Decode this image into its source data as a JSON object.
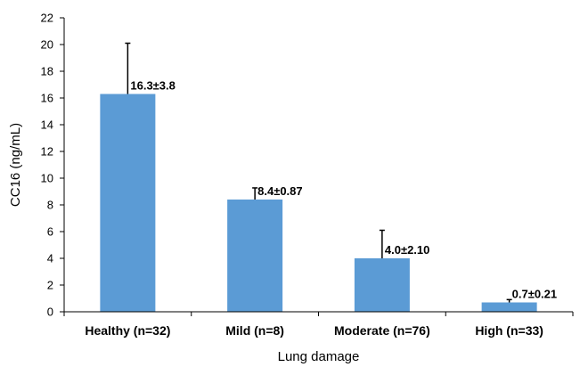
{
  "chart_data": {
    "type": "bar",
    "categories": [
      "Healthy (n=32)",
      "Mild (n=8)",
      "Moderate (n=76)",
      "High (n=33)"
    ],
    "values": [
      16.3,
      8.4,
      4.0,
      0.7
    ],
    "errors": [
      3.8,
      0.87,
      2.1,
      0.21
    ],
    "data_labels": [
      "16.3±3.8",
      "8.4±0.87",
      "4.0±2.10",
      "0.7±0.21"
    ],
    "xlabel": "Lung damage",
    "ylabel": "CC16 (ng/mL)",
    "ylim": [
      0,
      22
    ],
    "yticks": [
      0,
      2,
      4,
      6,
      8,
      10,
      12,
      14,
      16,
      18,
      20,
      22
    ],
    "error_bars": "upper-only",
    "grid": false,
    "legend": "none",
    "bar_color": "#5b9bd5"
  }
}
